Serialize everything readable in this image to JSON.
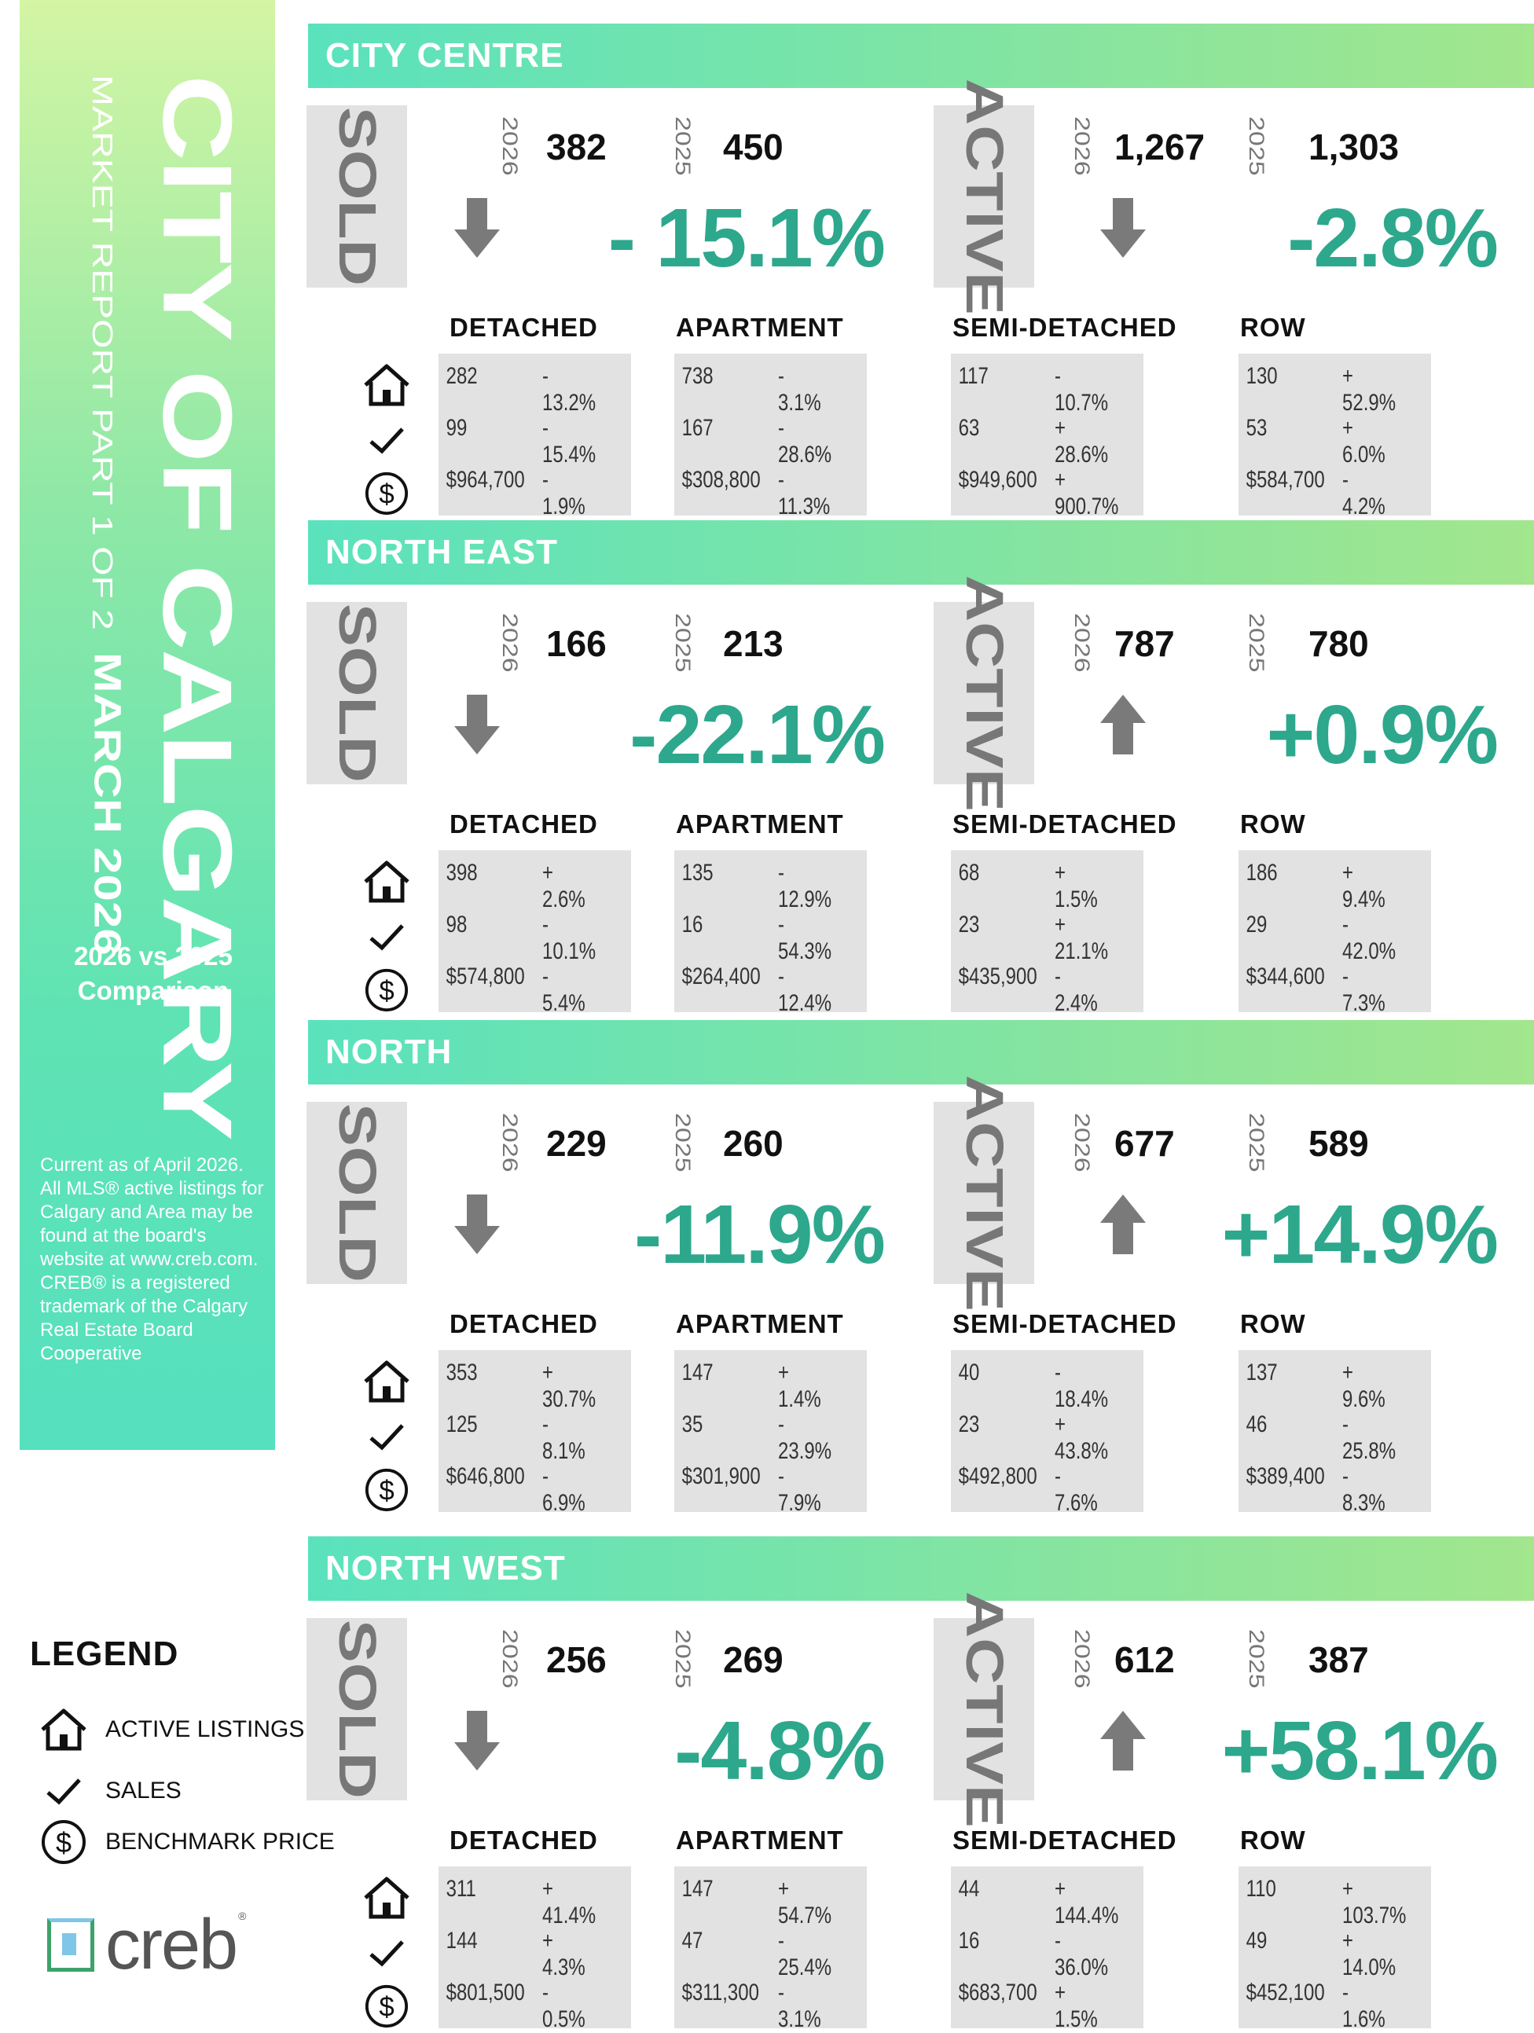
{
  "sidebar": {
    "title": "CITY OF CALGARY",
    "subtitle": "MARKET REPORT PART 1 OF 2",
    "month": "MARCH 2026",
    "comparison_line1": "2026 vs 2025",
    "comparison_line2": "Comparison",
    "disclaimer": "Current as of April 2026. All MLS® active listings for Calgary and Area may be found at the board's website at www.creb.com. CREB® is a registered trademark of the Calgary Real Estate Board Cooperative"
  },
  "labels": {
    "sold": "SOLD",
    "active": "ACTIVE",
    "year_current": "2026",
    "year_previous": "2025",
    "types": [
      "DETACHED",
      "APARTMENT",
      "SEMI-DETACHED",
      "ROW"
    ]
  },
  "regions": [
    {
      "name": "CITY CENTRE",
      "sold": {
        "current": "382",
        "previous": "450",
        "change": "- 15.1%",
        "direction": "down"
      },
      "active": {
        "current": "1,267",
        "previous": "1,303",
        "change": "-2.8%",
        "direction": "down"
      },
      "types": [
        {
          "listings": "282",
          "listings_chg": "- 13.2%",
          "sales": "99",
          "sales_chg": "- 15.4%",
          "price": "$964,700",
          "price_chg": "- 1.9%"
        },
        {
          "listings": "738",
          "listings_chg": "- 3.1%",
          "sales": "167",
          "sales_chg": "- 28.6%",
          "price": "$308,800",
          "price_chg": "- 11.3%"
        },
        {
          "listings": "117",
          "listings_chg": "- 10.7%",
          "sales": "63",
          "sales_chg": "+ 28.6%",
          "price": "$949,600",
          "price_chg": "+ 900.7%"
        },
        {
          "listings": "130",
          "listings_chg": "+ 52.9%",
          "sales": "53",
          "sales_chg": "+ 6.0%",
          "price": "$584,700",
          "price_chg": "- 4.2%"
        }
      ]
    },
    {
      "name": "NORTH EAST",
      "sold": {
        "current": "166",
        "previous": "213",
        "change": "-22.1%",
        "direction": "down"
      },
      "active": {
        "current": "787",
        "previous": "780",
        "change": "+0.9%",
        "direction": "up"
      },
      "types": [
        {
          "listings": "398",
          "listings_chg": "+ 2.6%",
          "sales": "98",
          "sales_chg": "- 10.1%",
          "price": "$574,800",
          "price_chg": "- 5.4%"
        },
        {
          "listings": "135",
          "listings_chg": "- 12.9%",
          "sales": "16",
          "sales_chg": "- 54.3%",
          "price": "$264,400",
          "price_chg": "- 12.4%"
        },
        {
          "listings": "68",
          "listings_chg": "+ 1.5%",
          "sales": "23",
          "sales_chg": "+ 21.1%",
          "price": "$435,900",
          "price_chg": "- 2.4%"
        },
        {
          "listings": "186",
          "listings_chg": "+ 9.4%",
          "sales": "29",
          "sales_chg": "- 42.0%",
          "price": "$344,600",
          "price_chg": "- 7.3%"
        }
      ]
    },
    {
      "name": "NORTH",
      "sold": {
        "current": "229",
        "previous": "260",
        "change": "-11.9%",
        "direction": "down"
      },
      "active": {
        "current": "677",
        "previous": "589",
        "change": "+14.9%",
        "direction": "up"
      },
      "types": [
        {
          "listings": "353",
          "listings_chg": "+ 30.7%",
          "sales": "125",
          "sales_chg": "- 8.1%",
          "price": "$646,800",
          "price_chg": "- 6.9%"
        },
        {
          "listings": "147",
          "listings_chg": "+ 1.4%",
          "sales": "35",
          "sales_chg": "- 23.9%",
          "price": "$301,900",
          "price_chg": "- 7.9%"
        },
        {
          "listings": "40",
          "listings_chg": "- 18.4%",
          "sales": "23",
          "sales_chg": "+ 43.8%",
          "price": "$492,800",
          "price_chg": "- 7.6%"
        },
        {
          "listings": "137",
          "listings_chg": "+ 9.6%",
          "sales": "46",
          "sales_chg": "- 25.8%",
          "price": "$389,400",
          "price_chg": "- 8.3%"
        }
      ]
    },
    {
      "name": "NORTH WEST",
      "sold": {
        "current": "256",
        "previous": "269",
        "change": "-4.8%",
        "direction": "down"
      },
      "active": {
        "current": "612",
        "previous": "387",
        "change": "+58.1%",
        "direction": "up"
      },
      "types": [
        {
          "listings": "311",
          "listings_chg": "+ 41.4%",
          "sales": "144",
          "sales_chg": "+ 4.3%",
          "price": "$801,500",
          "price_chg": "- 0.5%"
        },
        {
          "listings": "147",
          "listings_chg": "+ 54.7%",
          "sales": "47",
          "sales_chg": "- 25.4%",
          "price": "$311,300",
          "price_chg": "- 3.1%"
        },
        {
          "listings": "44",
          "listings_chg": "+ 144.4%",
          "sales": "16",
          "sales_chg": "- 36.0%",
          "price": "$683,700",
          "price_chg": "+ 1.5%"
        },
        {
          "listings": "110",
          "listings_chg": "+ 103.7%",
          "sales": "49",
          "sales_chg": "+ 14.0%",
          "price": "$452,100",
          "price_chg": "- 1.6%"
        }
      ]
    }
  ],
  "legend": {
    "title": "LEGEND",
    "items": [
      {
        "icon": "house-icon",
        "label": "ACTIVE LISTINGS"
      },
      {
        "icon": "checkmark-icon",
        "label": "SALES"
      },
      {
        "icon": "dollar-icon",
        "label": "BENCHMARK PRICE"
      }
    ]
  },
  "logo": {
    "text": "creb",
    "mark": "®"
  },
  "colors": {
    "accent_green": "#2da88c",
    "banner_top": "#d3f5a4",
    "banner_bottom": "#55e0be",
    "box_gray": "#e2e2e2",
    "arrow_gray": "#7a7a7a"
  }
}
